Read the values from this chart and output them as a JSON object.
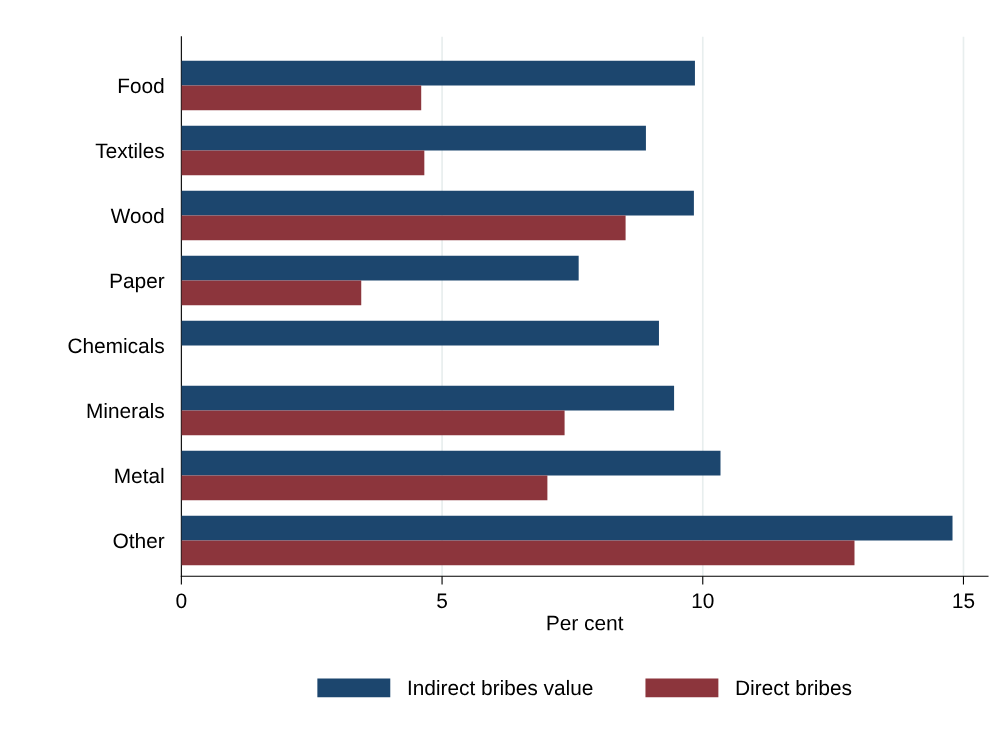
{
  "chart_data": {
    "type": "bar",
    "orientation": "horizontal",
    "xlabel": "Per cent",
    "categories": [
      "Food",
      "Textiles",
      "Wood",
      "Paper",
      "Chemicals",
      "Minerals",
      "Metal",
      "Other"
    ],
    "series": [
      {
        "name": "Indirect bribes value",
        "color": "#1c466e",
        "values": [
          9.85,
          8.91,
          9.83,
          7.62,
          9.16,
          9.45,
          10.34,
          14.79
        ]
      },
      {
        "name": "Direct bribes",
        "color": "#8c353c",
        "values": [
          4.6,
          4.66,
          8.52,
          3.45,
          null,
          7.35,
          7.02,
          12.91
        ]
      }
    ],
    "xlim": [
      0,
      15.47
    ],
    "xticks": [
      0,
      5,
      10,
      15
    ],
    "grid": "x",
    "legend": "bottom"
  }
}
